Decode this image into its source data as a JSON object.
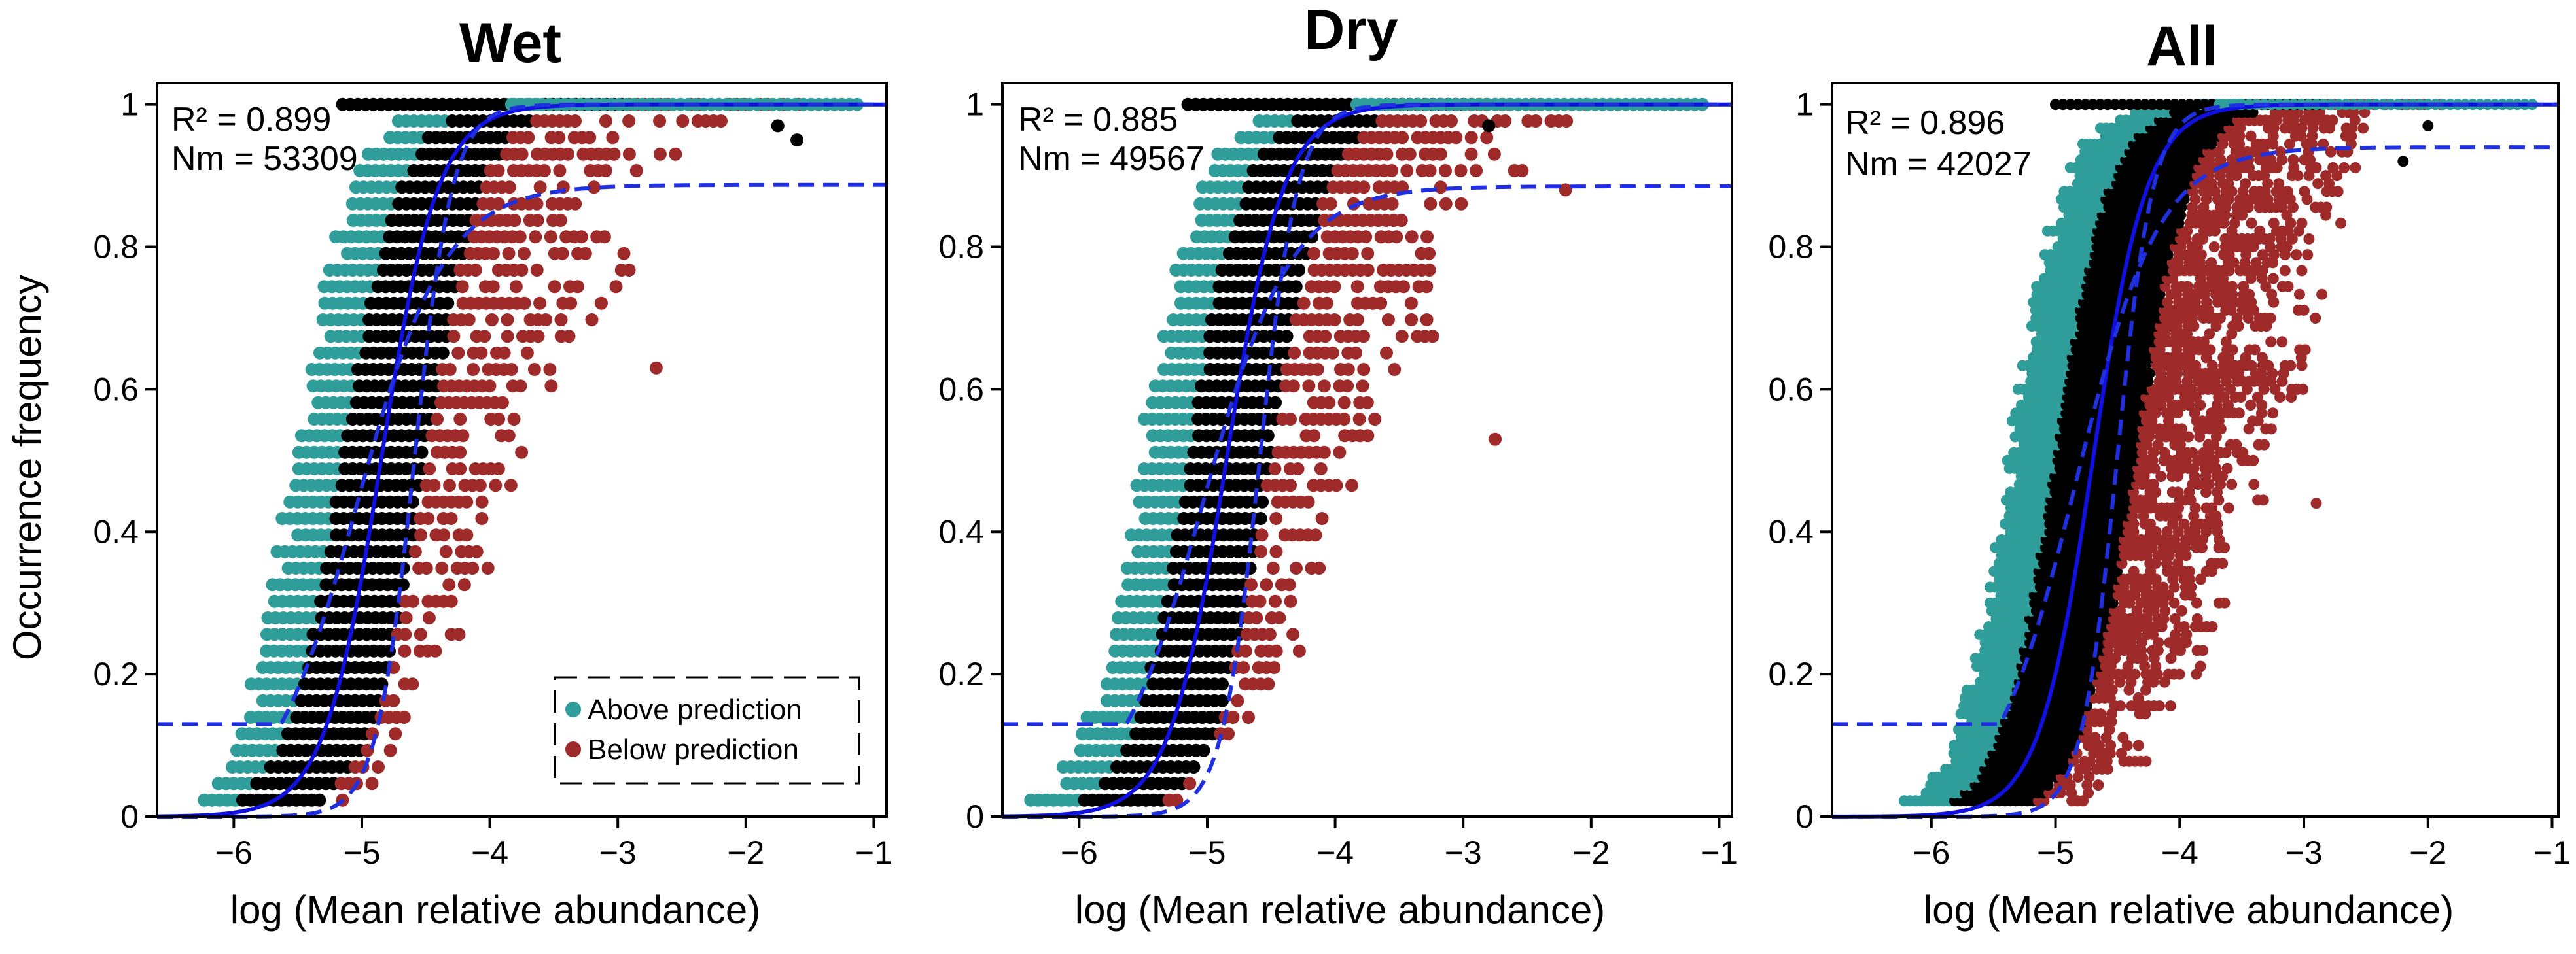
{
  "figure": {
    "ylabel": "Occurrence frequency",
    "colors": {
      "above": "#2f9e9a",
      "neutral": "#000000",
      "below": "#9e2a2a",
      "fit": "#1010e0",
      "ci": "#2030e0"
    },
    "legend": {
      "above_label": "Above prediction",
      "below_label": "Below prediction",
      "placement": "inside bottom-right of first panel"
    }
  },
  "chart_data": [
    {
      "type": "scatter",
      "title": "Wet",
      "xlabel": "log (Mean relative abundance)",
      "ylabel": "Occurrence frequency",
      "xlim": [
        -6.6,
        -0.9
      ],
      "ylim": [
        0,
        1.03
      ],
      "xticks": [
        -6,
        -5,
        -4,
        -3,
        -2,
        -1
      ],
      "yticks": [
        0,
        0.2,
        0.4,
        0.6,
        0.8,
        1
      ],
      "xtick_labels": [
        "−6",
        "−5",
        "−4",
        "−3",
        "−2",
        "−1"
      ],
      "ytick_labels": [
        "0",
        "0.2",
        "0.4",
        "0.6",
        "0.8",
        "1"
      ],
      "r2_label": "R² = 0.899",
      "nm_label": "Nm = 53309",
      "fit": {
        "center": -4.85,
        "slope": 4.5,
        "ci_upper_plateau": 0.887,
        "ci_width": 0.2
      },
      "series": [
        {
          "name": "Above prediction",
          "role": "above"
        },
        {
          "name": "Below prediction",
          "role": "below"
        }
      ],
      "outliers": [
        [
          -2.7,
          0.63
        ],
        [
          -1.6,
          0.95
        ],
        [
          -1.75,
          0.97
        ]
      ],
      "legend": true
    },
    {
      "type": "scatter",
      "title": "Dry",
      "xlabel": "log (Mean relative abundance)",
      "ylabel": "",
      "xlim": [
        -6.6,
        -0.9
      ],
      "ylim": [
        0,
        1.03
      ],
      "xticks": [
        -6,
        -5,
        -4,
        -3,
        -2,
        -1
      ],
      "yticks": [
        0,
        0.2,
        0.4,
        0.6,
        0.8,
        1
      ],
      "xtick_labels": [
        "−6",
        "−5",
        "−4",
        "−3",
        "−2",
        "−1"
      ],
      "ytick_labels": [
        "0",
        "0.2",
        "0.4",
        "0.6",
        "0.8",
        "1"
      ],
      "r2_label": "R² = 0.885",
      "nm_label": "Nm = 49567",
      "fit": {
        "center": -4.85,
        "slope": 4.5,
        "ci_upper_plateau": 0.885,
        "ci_width": 0.2
      },
      "series": [
        {
          "name": "Above prediction",
          "role": "above"
        },
        {
          "name": "Below prediction",
          "role": "below"
        }
      ],
      "outliers": [
        [
          -2.75,
          0.53
        ],
        [
          -2.2,
          0.88
        ],
        [
          -2.8,
          0.97
        ]
      ],
      "legend": false
    },
    {
      "type": "scatter",
      "title": "All",
      "xlabel": "log (Mean relative abundance)",
      "ylabel": "",
      "xlim": [
        -6.8,
        -0.95
      ],
      "ylim": [
        0,
        1.03
      ],
      "xticks": [
        -6,
        -5,
        -4,
        -3,
        -2,
        -1
      ],
      "yticks": [
        0,
        0.2,
        0.4,
        0.6,
        0.8,
        1
      ],
      "xtick_labels": [
        "−6",
        "−5",
        "−4",
        "−3",
        "−2",
        "−1"
      ],
      "ytick_labels": [
        "0",
        "0.2",
        "0.4",
        "0.6",
        "0.8",
        "1"
      ],
      "r2_label": "R² = 0.896",
      "nm_label": "Nm = 42027",
      "fit": {
        "center": -4.7,
        "slope": 4.6,
        "ci_upper_plateau": 0.94,
        "ci_width": 0.15
      },
      "series": [
        {
          "name": "Above prediction",
          "role": "above"
        },
        {
          "name": "Below prediction",
          "role": "below"
        }
      ],
      "outliers": [
        [
          -2.9,
          0.44
        ],
        [
          -2.2,
          0.92
        ],
        [
          -2.0,
          0.97
        ]
      ],
      "legend": false
    }
  ]
}
